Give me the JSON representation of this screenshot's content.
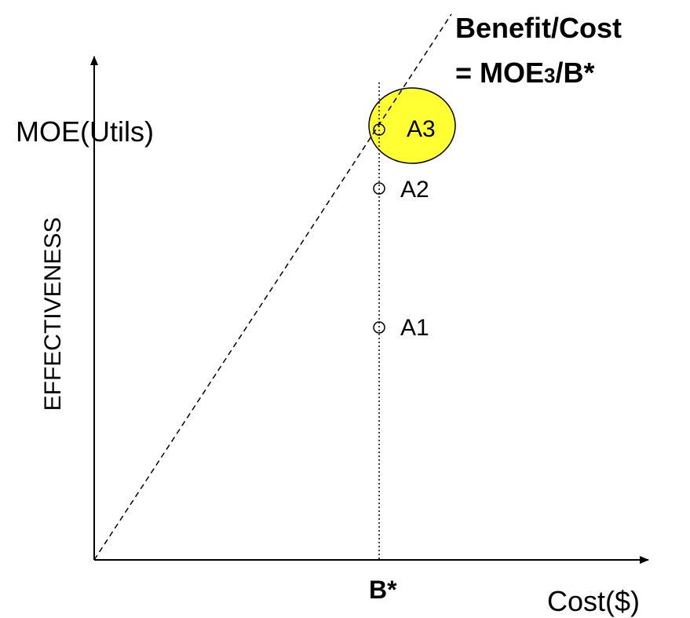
{
  "annotation": {
    "line1": "Benefit/Cost",
    "line2": {
      "prefix": "= MOE",
      "subscript": "3",
      "suffix": "/B*"
    }
  },
  "y_axis": {
    "label": "EFFECTIVENESS",
    "top_label": "MOE(Utils)"
  },
  "x_axis": {
    "label": "Cost($)",
    "marker": "B*"
  },
  "points": [
    {
      "label": "A1"
    },
    {
      "label": "A2"
    },
    {
      "label": "A3"
    }
  ]
}
